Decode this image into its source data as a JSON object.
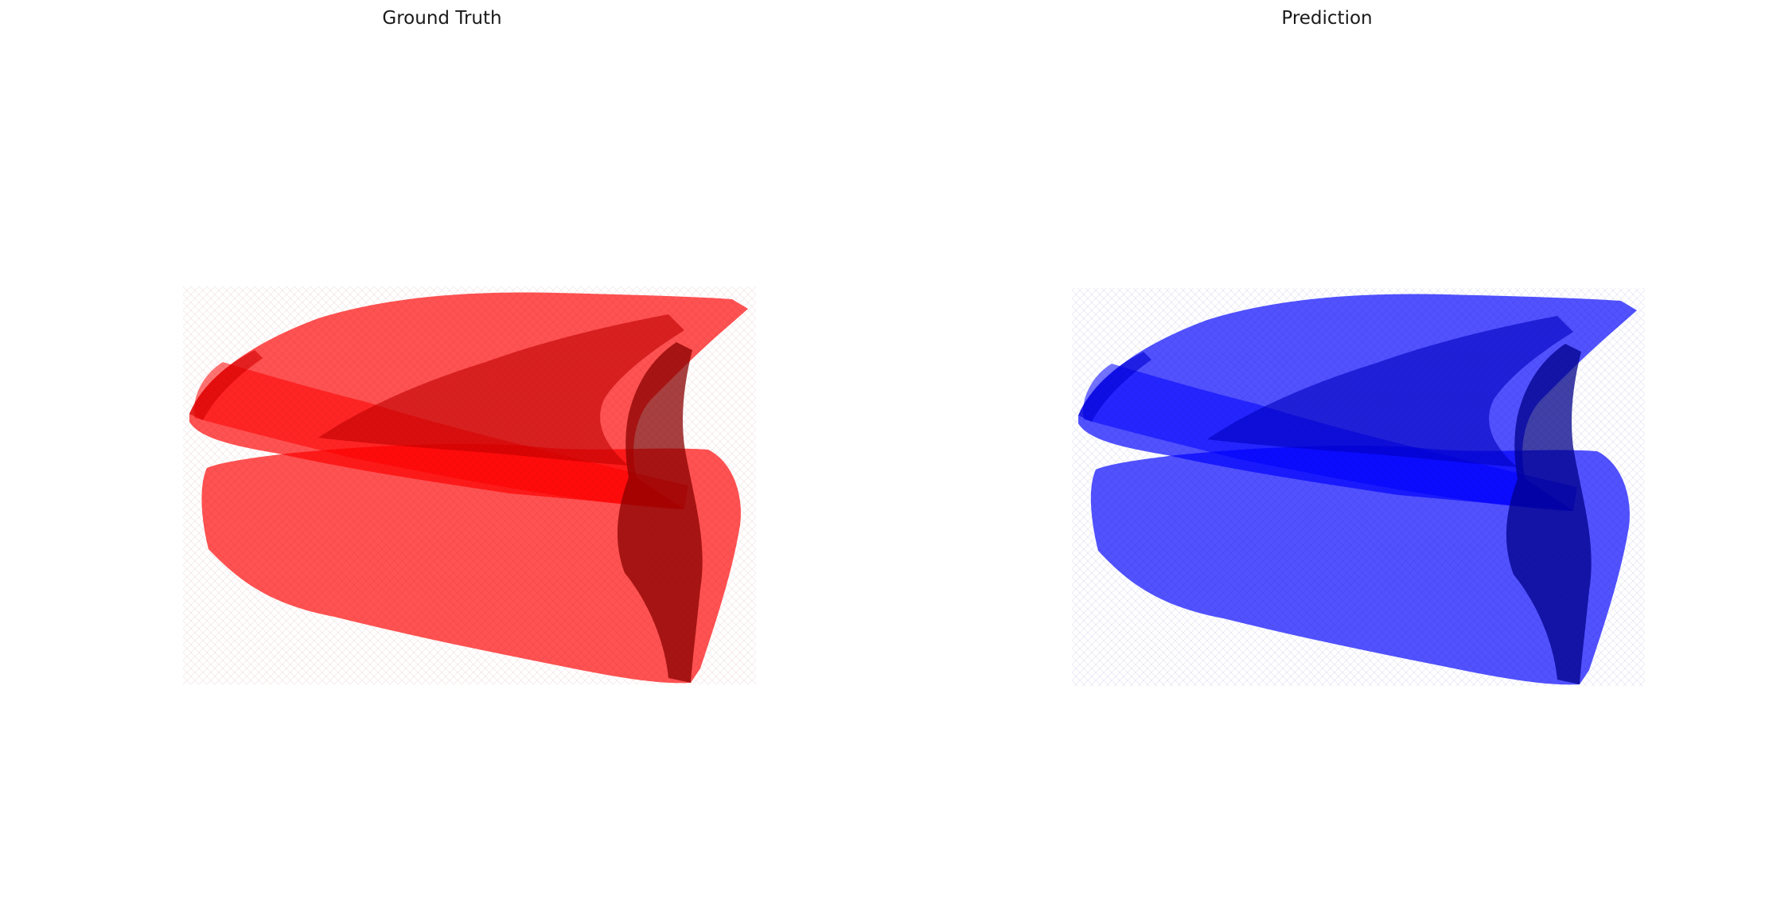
{
  "panels": [
    {
      "title": "Ground Truth",
      "color": "#ff0000",
      "icon": "red-3d-surface-render"
    },
    {
      "title": "Prediction",
      "color": "#0000ff",
      "icon": "blue-3d-surface-render"
    }
  ]
}
